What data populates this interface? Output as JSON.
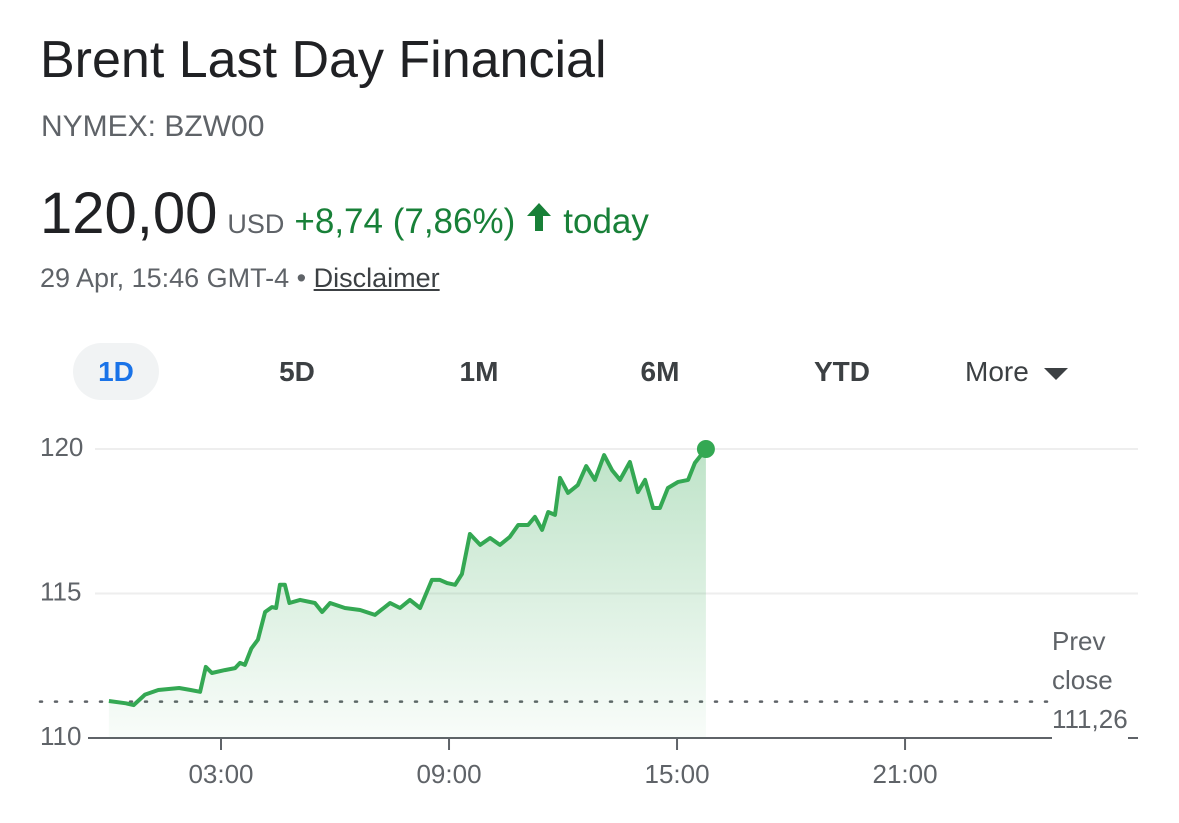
{
  "header": {
    "title": "Brent Last Day Financial",
    "ticker": "NYMEX: BZW00"
  },
  "quote": {
    "price": "120,00",
    "currency": "USD",
    "change": "+8,74 (7,86%)",
    "period": "today",
    "timestamp": "29 Apr, 15:46 GMT-4",
    "disclaimer": "Disclaimer"
  },
  "tabs": {
    "items": [
      "1D",
      "5D",
      "1M",
      "6M",
      "YTD"
    ],
    "more": "More",
    "selected": 0
  },
  "chart_data": {
    "type": "line",
    "color": "#34a853",
    "x": [
      0.05,
      0.5,
      0.7,
      1.0,
      1.35,
      1.9,
      2.2,
      2.45,
      2.6,
      2.76,
      3.1,
      3.37,
      3.5,
      3.63,
      3.8,
      3.97,
      4.16,
      4.34,
      4.45,
      4.55,
      4.68,
      4.8,
      5.08,
      5.47,
      5.66,
      5.87,
      6.26,
      6.66,
      7.05,
      7.45,
      7.71,
      7.97,
      8.24,
      8.55,
      8.76,
      8.95,
      9.16,
      9.34,
      9.55,
      9.82,
      10.08,
      10.34,
      10.6,
      10.82,
      11.08,
      11.26,
      11.45,
      11.61,
      11.79,
      11.92,
      12.13,
      12.39,
      12.61,
      12.84,
      13.08,
      13.29,
      13.5,
      13.76,
      13.97,
      14.16,
      14.37,
      14.55,
      14.76,
      15.03,
      15.29,
      15.47,
      15.76
    ],
    "values": [
      111.28,
      111.2,
      111.14,
      111.5,
      111.66,
      111.73,
      111.66,
      111.6,
      112.46,
      112.25,
      112.35,
      112.42,
      112.6,
      112.53,
      113.1,
      113.4,
      114.36,
      114.53,
      114.5,
      115.3,
      115.3,
      114.67,
      114.78,
      114.67,
      114.36,
      114.67,
      114.5,
      114.43,
      114.26,
      114.67,
      114.5,
      114.78,
      114.5,
      115.47,
      115.47,
      115.36,
      115.3,
      115.67,
      117.06,
      116.68,
      116.92,
      116.68,
      116.96,
      117.37,
      117.37,
      117.65,
      117.2,
      117.82,
      117.72,
      119.0,
      118.48,
      118.75,
      119.41,
      118.93,
      119.79,
      119.27,
      118.93,
      119.55,
      118.51,
      118.93,
      117.96,
      117.96,
      118.65,
      118.86,
      118.93,
      119.52,
      120.0
    ],
    "xlim": [
      -0.5,
      27.13
    ],
    "xticks": [
      {
        "value": 3,
        "label": "03:00"
      },
      {
        "value": 9,
        "label": "09:00"
      },
      {
        "value": 15,
        "label": "15:00"
      },
      {
        "value": 21,
        "label": "21:00"
      }
    ],
    "ylim": [
      110,
      120
    ],
    "yticks": [
      110,
      115,
      120
    ],
    "grid": true,
    "prev_close": 111.26,
    "prev_close_label": "111,26",
    "prev_close_title": "Prev close"
  }
}
